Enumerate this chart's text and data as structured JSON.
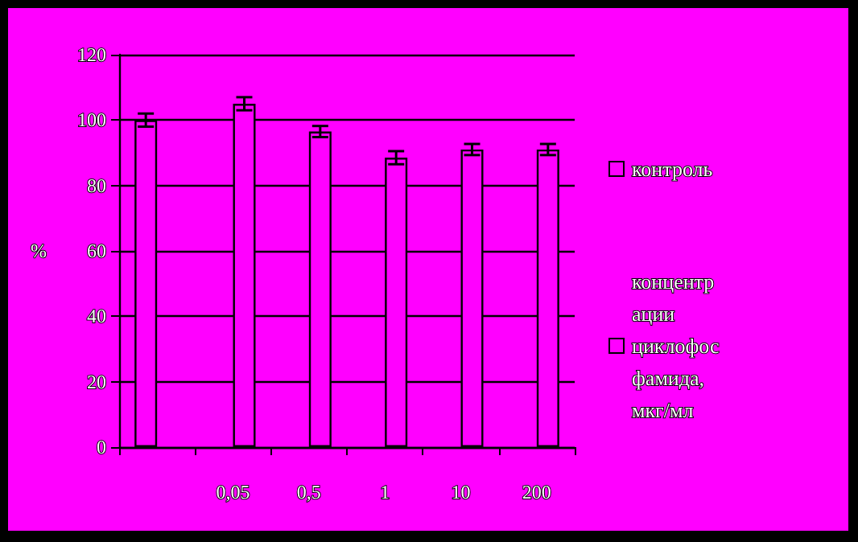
{
  "chart_data": {
    "type": "bar",
    "ylabel": "%",
    "categories": [
      null,
      "0,05",
      "0,5",
      "1",
      "10",
      "200"
    ],
    "series": [
      {
        "name": "контроль",
        "color": "#ff00ff",
        "values": [
          100,
          null,
          null,
          null,
          null,
          null
        ],
        "errors": [
          2,
          null,
          null,
          null,
          null,
          null
        ]
      },
      {
        "name": "концентрации циклофосфамида, мкг/мл",
        "color": "#ff00ff",
        "values": [
          null,
          105,
          96.5,
          88.5,
          91,
          91
        ],
        "errors": [
          null,
          2,
          1.7,
          2,
          1.7,
          1.7
        ]
      }
    ],
    "ylim": [
      0,
      120
    ],
    "yticks": [
      0,
      20,
      40,
      60,
      80,
      100,
      120
    ],
    "grid": "y",
    "legend": "right"
  }
}
